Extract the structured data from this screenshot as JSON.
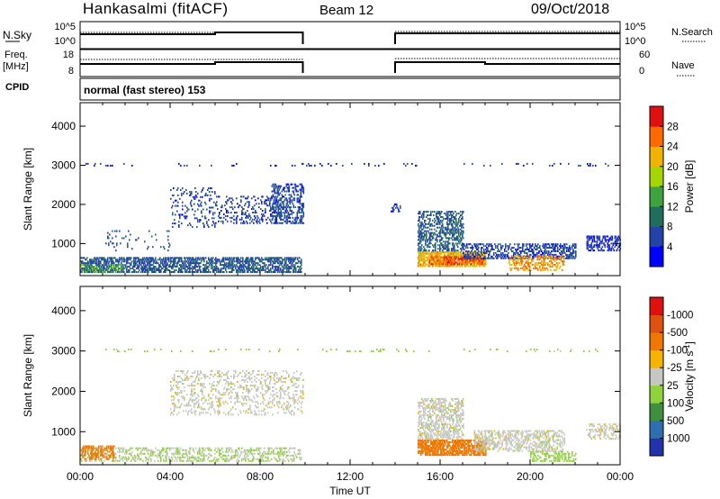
{
  "header": {
    "station": "Hankasalmi (fitACF)",
    "beam": "Beam 12",
    "date": "09/Oct/2018",
    "mode": "normal (fast stereo) 153"
  },
  "strip_labels": {
    "nsky": "N.Sky",
    "freq_line1": "Freq.",
    "freq_line2": "[MHz]",
    "cpid": "CPID",
    "nsearch": "N.Search",
    "nave": "Nave"
  },
  "strip_ticks": {
    "noise_left": [
      "10^5",
      "10^0"
    ],
    "noise_right": [
      "10^5",
      "10^0"
    ],
    "freq_left": [
      "18",
      "8"
    ],
    "nave_right": [
      "60",
      "0"
    ]
  },
  "colors": {
    "power": [
      "#0000ff",
      "#2343a8",
      "#1f6e5c",
      "#3ea33e",
      "#a6d600",
      "#f0b400",
      "#ff6a00",
      "#e01010"
    ],
    "velocity": [
      "#2233aa",
      "#2f6fb0",
      "#3f8f3f",
      "#8fd23a",
      "#c6c6c2",
      "#f5b400",
      "#f07800",
      "#e05010",
      "#e01010"
    ]
  },
  "chart_data": [
    {
      "type": "heatmap",
      "xlabel": "",
      "ylabel": "Slant Range [km]",
      "x_ticks": [
        "00:00",
        "04:00",
        "08:00",
        "12:00",
        "16:00",
        "20:00",
        "00:00"
      ],
      "xlim": [
        0,
        24
      ],
      "y_ticks": [
        1000,
        2000,
        3000,
        4000
      ],
      "ylim": [
        180,
        4600
      ],
      "colorbar": {
        "label": "Power [dB]",
        "ticks": [
          4,
          8,
          12,
          16,
          20,
          24,
          28
        ],
        "range": [
          0,
          32
        ]
      },
      "regions": [
        {
          "t0": 0.0,
          "t1": 9.8,
          "r0": 250,
          "r1": 650,
          "value": 7,
          "density": 0.55
        },
        {
          "t0": 0.0,
          "t1": 2.0,
          "r0": 250,
          "r1": 450,
          "value": 14,
          "density": 0.35
        },
        {
          "t0": 1.0,
          "t1": 4.0,
          "r0": 800,
          "r1": 1300,
          "value": 7,
          "density": 0.07
        },
        {
          "t0": 4.0,
          "t1": 6.0,
          "r0": 1400,
          "r1": 2400,
          "value": 6,
          "density": 0.12
        },
        {
          "t0": 6.0,
          "t1": 9.0,
          "r0": 1500,
          "r1": 2200,
          "value": 6,
          "density": 0.2
        },
        {
          "t0": 8.5,
          "t1": 9.9,
          "r0": 1500,
          "r1": 2500,
          "value": 6,
          "density": 0.4
        },
        {
          "t0": 0.2,
          "t1": 23.8,
          "r0": 2970,
          "r1": 3030,
          "value": 4,
          "density": 0.06
        },
        {
          "t0": 15.0,
          "t1": 18.0,
          "r0": 400,
          "r1": 800,
          "value": 22,
          "density": 0.75
        },
        {
          "t0": 15.5,
          "t1": 18.0,
          "r0": 450,
          "r1": 650,
          "value": 28,
          "density": 0.45
        },
        {
          "t0": 15.0,
          "t1": 17.0,
          "r0": 800,
          "r1": 1800,
          "value": 8,
          "density": 0.4
        },
        {
          "t0": 17.0,
          "t1": 22.0,
          "r0": 600,
          "r1": 1000,
          "value": 6,
          "density": 0.45
        },
        {
          "t0": 19.0,
          "t1": 21.5,
          "r0": 300,
          "r1": 700,
          "value": 24,
          "density": 0.35
        },
        {
          "t0": 22.5,
          "t1": 24.0,
          "r0": 800,
          "r1": 1200,
          "value": 5,
          "density": 0.4
        },
        {
          "t0": 13.8,
          "t1": 14.2,
          "r0": 1800,
          "r1": 2000,
          "value": 6,
          "density": 0.4
        }
      ]
    },
    {
      "type": "heatmap",
      "xlabel": "Time UT",
      "ylabel": "Slant Range [km]",
      "x_ticks": [
        "00:00",
        "04:00",
        "08:00",
        "12:00",
        "16:00",
        "20:00",
        "00:00"
      ],
      "xlim": [
        0,
        24
      ],
      "y_ticks": [
        1000,
        2000,
        3000,
        4000
      ],
      "ylim": [
        180,
        4600
      ],
      "colorbar": {
        "label": "Velocity [m s-1]",
        "ticks": [
          "1000",
          "500",
          "100",
          "25",
          "-25",
          "-100",
          "-500",
          "-1000"
        ]
      },
      "regions": [
        {
          "t0": 0.0,
          "t1": 9.8,
          "r0": 250,
          "r1": 600,
          "value": 25,
          "density": 0.35
        },
        {
          "t0": 0.0,
          "t1": 1.5,
          "r0": 300,
          "r1": 650,
          "value": -300,
          "density": 0.5
        },
        {
          "t0": 4.0,
          "t1": 9.9,
          "r0": 1400,
          "r1": 2500,
          "value": 0,
          "density": 0.2
        },
        {
          "t0": 0.2,
          "t1": 23.8,
          "r0": 2970,
          "r1": 3030,
          "value": 50,
          "density": 0.06
        },
        {
          "t0": 15.0,
          "t1": 18.0,
          "r0": 400,
          "r1": 800,
          "value": -200,
          "density": 0.7
        },
        {
          "t0": 15.0,
          "t1": 17.0,
          "r0": 800,
          "r1": 1800,
          "value": 0,
          "density": 0.45
        },
        {
          "t0": 17.5,
          "t1": 21.5,
          "r0": 500,
          "r1": 1000,
          "value": 0,
          "density": 0.45
        },
        {
          "t0": 20.0,
          "t1": 22.0,
          "r0": 250,
          "r1": 500,
          "value": 50,
          "density": 0.35
        },
        {
          "t0": 22.5,
          "t1": 24.0,
          "r0": 800,
          "r1": 1200,
          "value": 0,
          "density": 0.35
        }
      ]
    }
  ]
}
